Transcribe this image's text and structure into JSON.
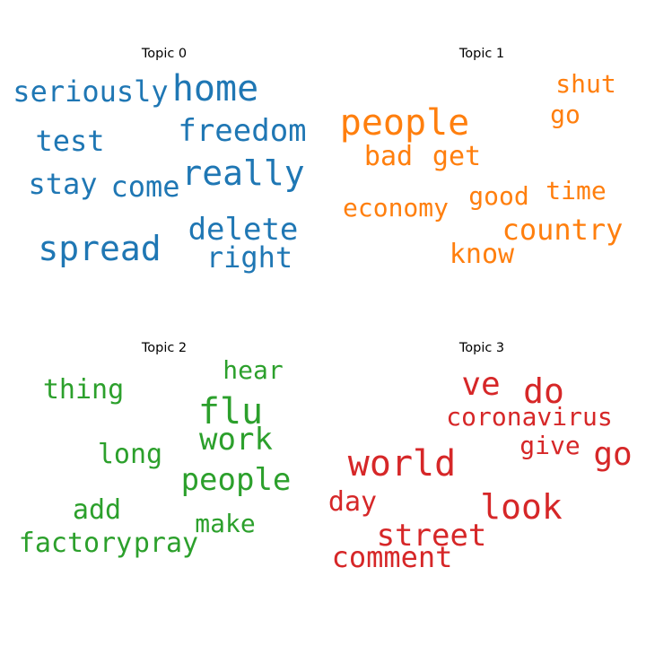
{
  "chart_data": {
    "type": "wordcloud",
    "panels": [
      {
        "title": "Topic 0",
        "color": "#1f77b4",
        "words": [
          "seriously",
          "home",
          "freedom",
          "test",
          "really",
          "stay",
          "come",
          "spread",
          "delete",
          "right"
        ]
      },
      {
        "title": "Topic 1",
        "color": "#ff7f0e",
        "words": [
          "shut",
          "people",
          "go",
          "bad",
          "get",
          "time",
          "good",
          "economy",
          "country",
          "know"
        ]
      },
      {
        "title": "Topic 2",
        "color": "#2ca02c",
        "words": [
          "hear",
          "thing",
          "flu",
          "work",
          "long",
          "people",
          "add",
          "make",
          "factory",
          "pray"
        ]
      },
      {
        "title": "Topic 3",
        "color": "#d62728",
        "words": [
          "ve",
          "do",
          "coronavirus",
          "give",
          "go",
          "world",
          "day",
          "look",
          "street",
          "comment"
        ]
      }
    ]
  }
}
